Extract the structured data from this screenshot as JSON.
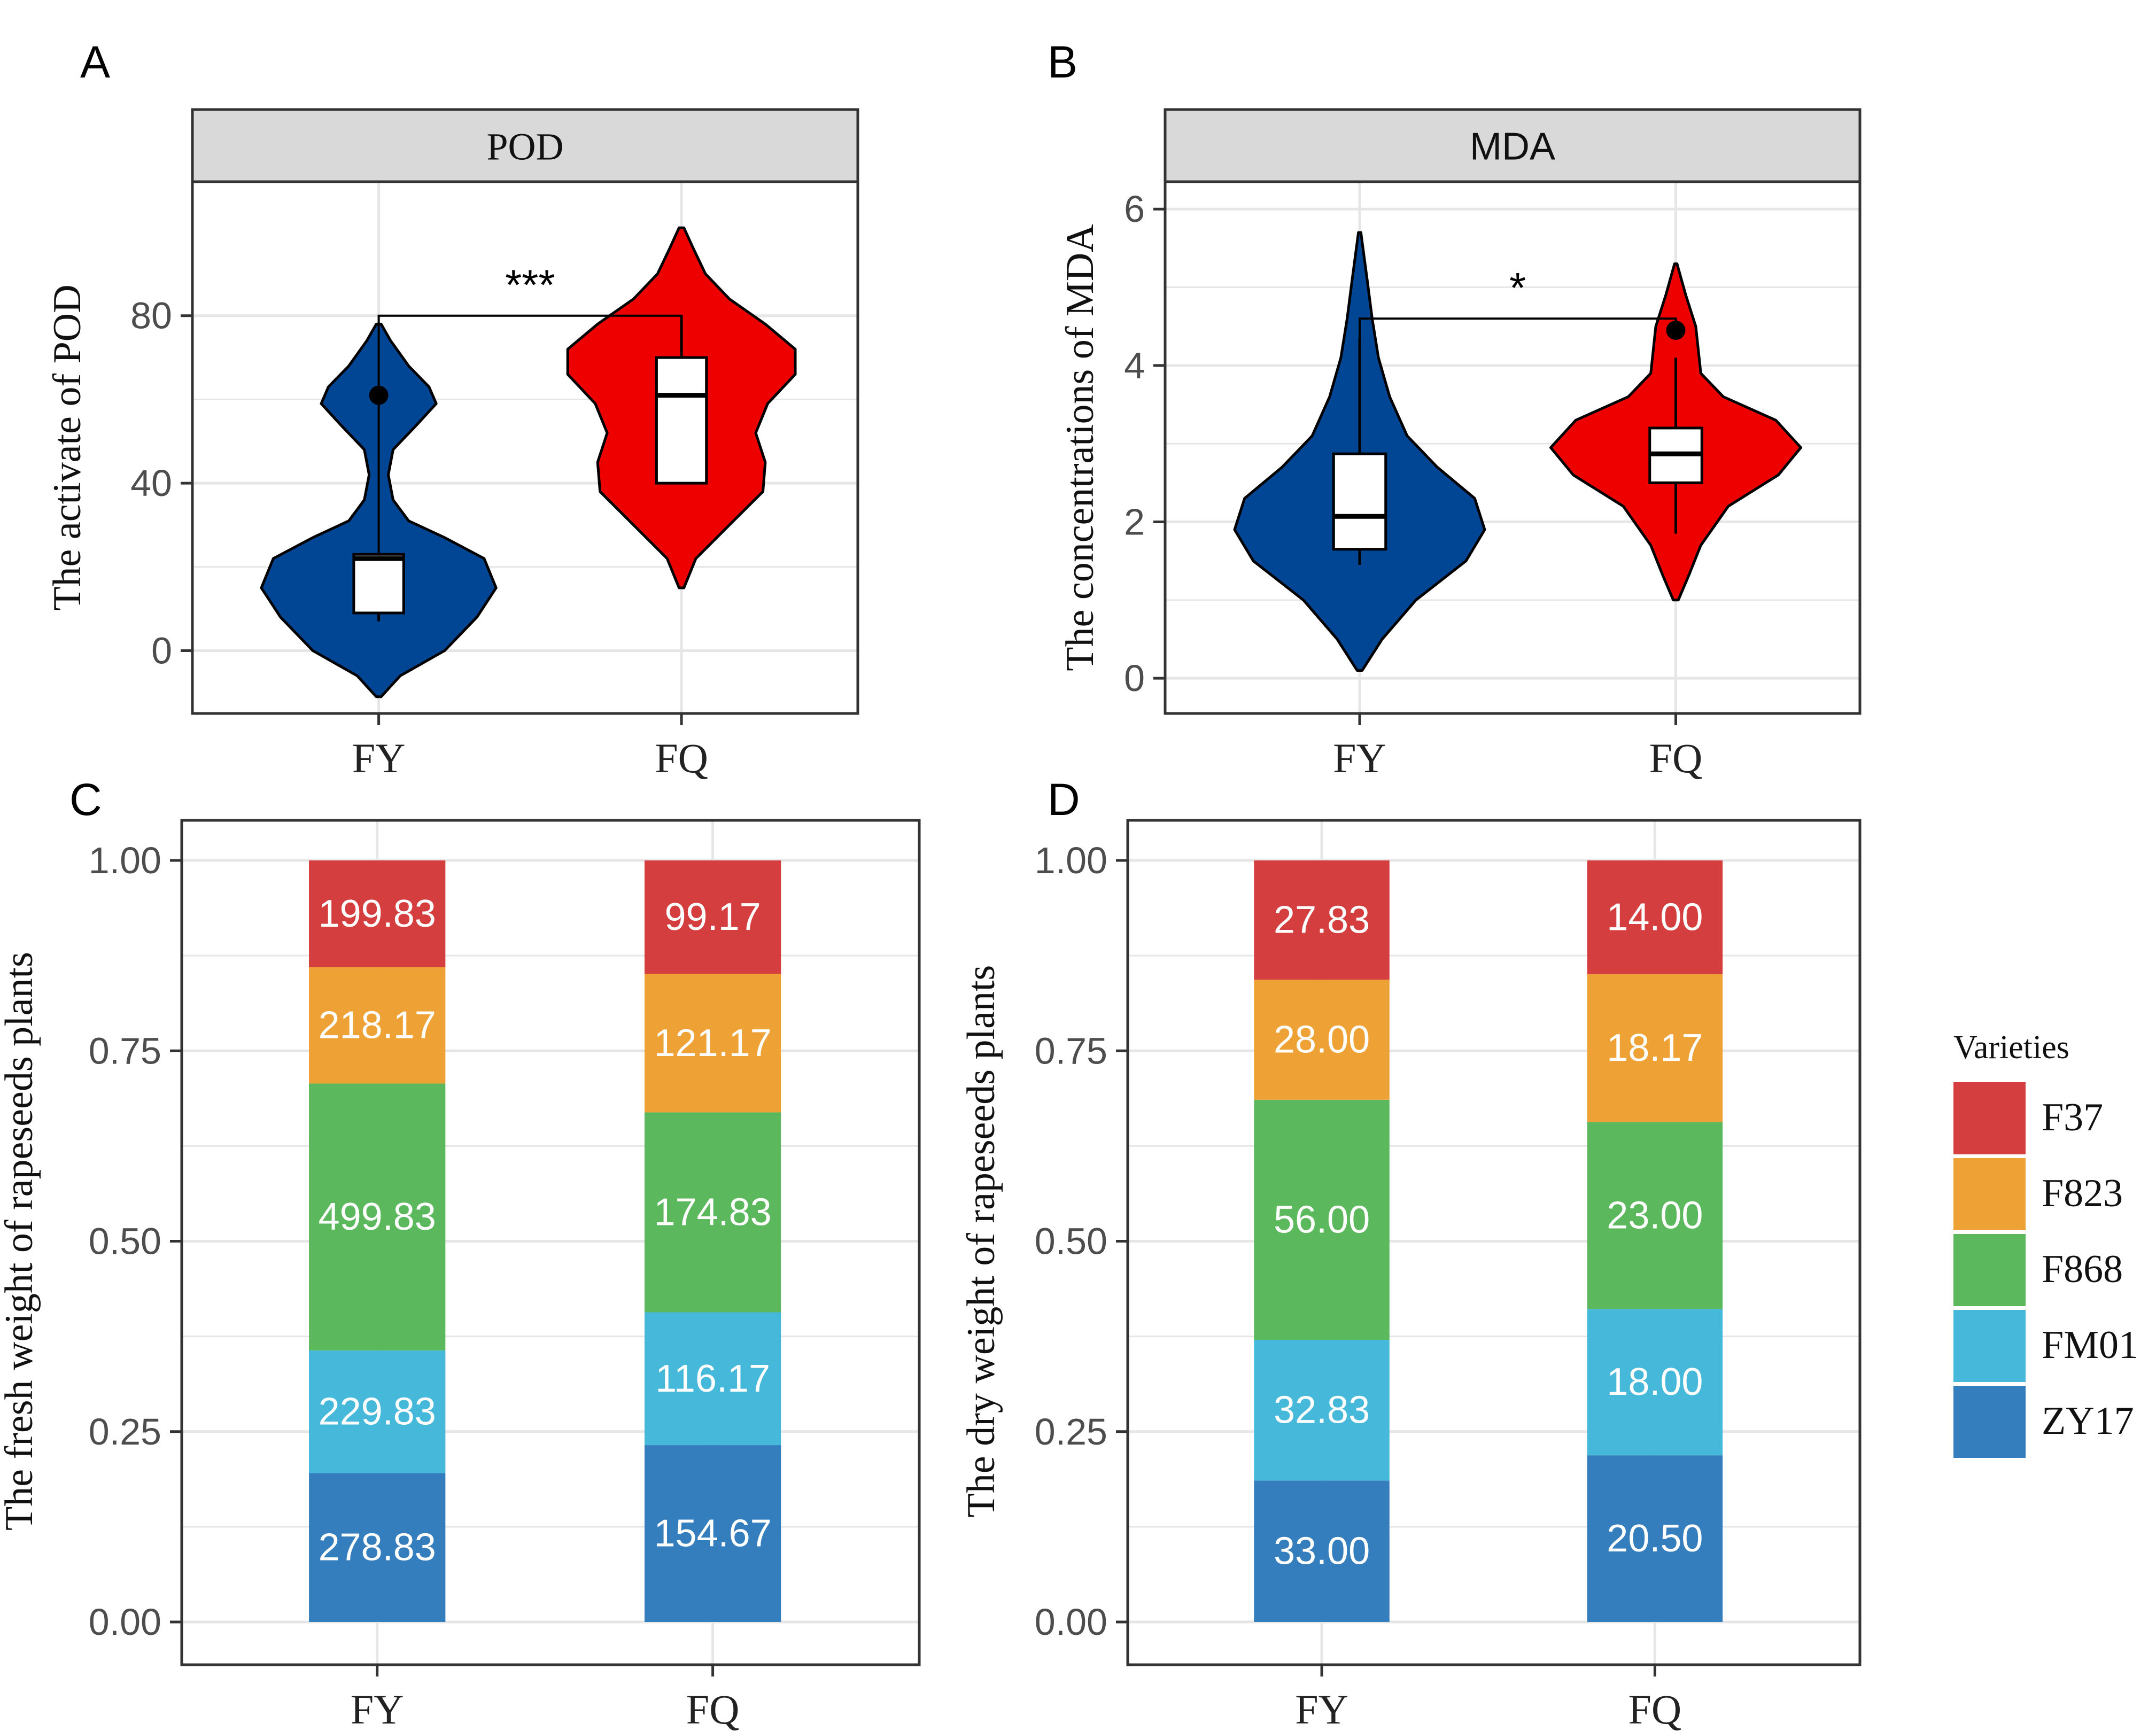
{
  "colors": {
    "fy_violin": "#014694",
    "fq_violin": "#ee0000",
    "strip_fill": "#d9d9d9",
    "grid": "#e6e6e6",
    "axis_text": "#4d4d4d",
    "F37": "#d53e3e",
    "F823": "#eea236",
    "F868": "#5cb85c",
    "FM01": "#46b8da",
    "ZY17": "#357ebd"
  },
  "legend": {
    "title": "Varieties",
    "items": [
      {
        "key": "F37",
        "label": "F37"
      },
      {
        "key": "F823",
        "label": "F823"
      },
      {
        "key": "F868",
        "label": "F868"
      },
      {
        "key": "FM01",
        "label": "FM01"
      },
      {
        "key": "ZY17",
        "label": "ZY17"
      }
    ]
  },
  "chart_data": [
    {
      "panel": "A",
      "type": "violin",
      "strip_title": "POD",
      "ylabel": "The activate of POD",
      "categories": [
        "FY",
        "FQ"
      ],
      "yticks": [
        0,
        40,
        80
      ],
      "ylim": [
        -15,
        112
      ],
      "significance": "***",
      "groups": [
        {
          "name": "FY",
          "box": {
            "q1": 9,
            "median": 22,
            "q3": 23,
            "whisker_low": 7,
            "whisker_high": 23
          },
          "outliers": [
            61
          ],
          "violin_range": [
            -11,
            78
          ]
        },
        {
          "name": "FQ",
          "box": {
            "q1": 40,
            "median": 61,
            "q3": 70,
            "whisker_low": 40,
            "whisker_high": 80
          },
          "outliers": [],
          "violin_range": [
            15,
            101
          ]
        }
      ],
      "bracket_y": 80
    },
    {
      "panel": "B",
      "type": "violin",
      "strip_title": "MDA",
      "ylabel": "The concentrations of  MDA",
      "categories": [
        "FY",
        "FQ"
      ],
      "yticks": [
        0,
        2,
        4,
        6
      ],
      "ylim": [
        -0.45,
        6.35
      ],
      "significance": "*",
      "groups": [
        {
          "name": "FY",
          "box": {
            "q1": 1.65,
            "median": 2.07,
            "q3": 2.87,
            "whisker_low": 1.45,
            "whisker_high": 4.35
          },
          "outliers": [],
          "violin_range": [
            0.1,
            5.7
          ]
        },
        {
          "name": "FQ",
          "box": {
            "q1": 2.5,
            "median": 2.87,
            "q3": 3.2,
            "whisker_low": 1.85,
            "whisker_high": 4.1
          },
          "outliers": [
            4.45
          ],
          "violin_range": [
            1.0,
            5.3
          ]
        }
      ],
      "bracket_y": 4.6
    },
    {
      "panel": "C",
      "type": "bar",
      "stacked": "percent",
      "ylabel": "The fresh weight of rapeseeds plants",
      "categories": [
        "FY",
        "FQ"
      ],
      "yticks": [
        "0.00",
        "0.25",
        "0.50",
        "0.75",
        "1.00"
      ],
      "ylim": [
        0,
        1
      ],
      "series": [
        {
          "name": "ZY17",
          "values": [
            278.83,
            154.67
          ],
          "labels": [
            "278.83",
            "154.67"
          ]
        },
        {
          "name": "FM01",
          "values": [
            229.83,
            116.17
          ],
          "labels": [
            "229.83",
            "116.17"
          ]
        },
        {
          "name": "F868",
          "values": [
            499.83,
            174.83
          ],
          "labels": [
            "499.83",
            "174.83"
          ]
        },
        {
          "name": "F823",
          "values": [
            218.17,
            121.17
          ],
          "labels": [
            "218.17",
            "121.17"
          ]
        },
        {
          "name": "F37",
          "values": [
            199.83,
            99.17
          ],
          "labels": [
            "199.83",
            "99.17"
          ]
        }
      ]
    },
    {
      "panel": "D",
      "type": "bar",
      "stacked": "percent",
      "ylabel": "The dry weight of rapeseeds plants",
      "categories": [
        "FY",
        "FQ"
      ],
      "yticks": [
        "0.00",
        "0.25",
        "0.50",
        "0.75",
        "1.00"
      ],
      "ylim": [
        0,
        1
      ],
      "series": [
        {
          "name": "ZY17",
          "values": [
            33.0,
            20.5
          ],
          "labels": [
            "33.00",
            "20.50"
          ]
        },
        {
          "name": "FM01",
          "values": [
            32.83,
            18.0
          ],
          "labels": [
            "32.83",
            "18.00"
          ]
        },
        {
          "name": "F868",
          "values": [
            56.0,
            23.0
          ],
          "labels": [
            "56.00",
            "23.00"
          ]
        },
        {
          "name": "F823",
          "values": [
            28.0,
            18.17
          ],
          "labels": [
            "28.00",
            "18.17"
          ]
        },
        {
          "name": "F37",
          "values": [
            27.83,
            14.0
          ],
          "labels": [
            "27.83",
            "14.00"
          ]
        }
      ]
    }
  ]
}
